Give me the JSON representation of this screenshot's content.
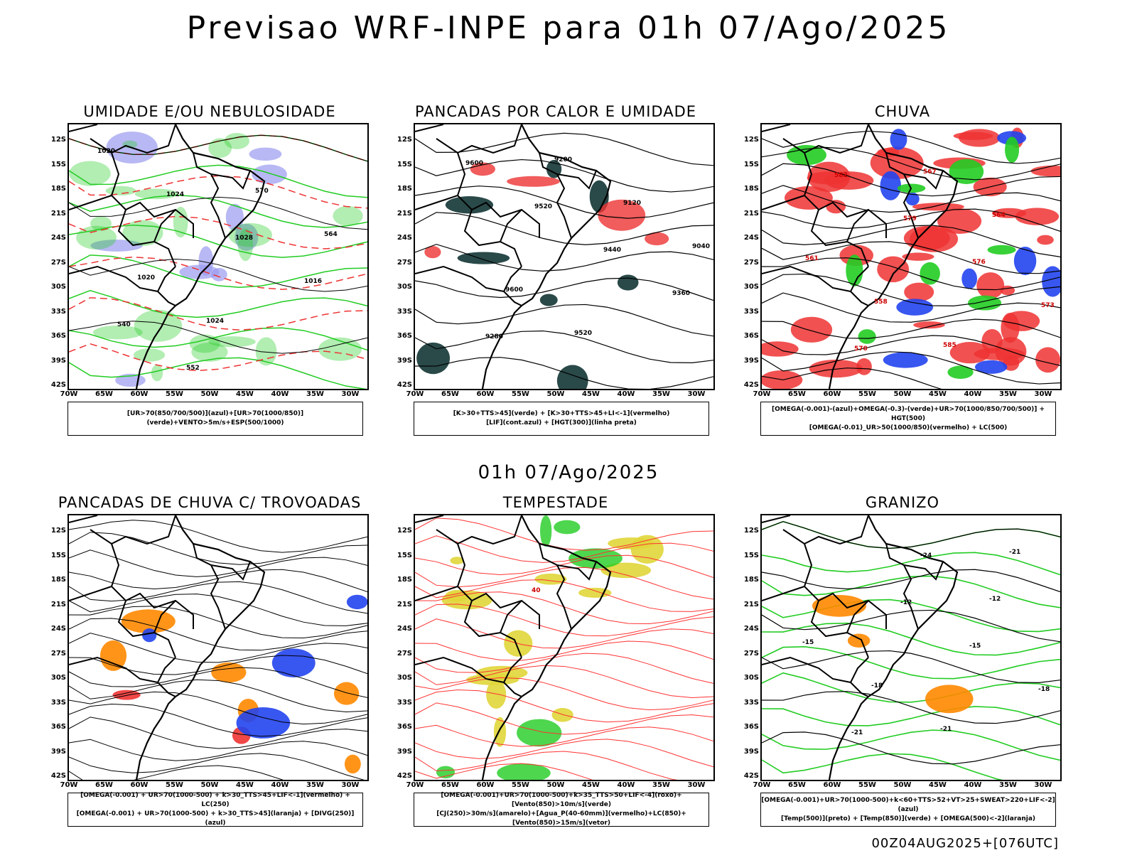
{
  "header": {
    "title": "Previsao WRF-INPE  para 01h 07/Ago/2025"
  },
  "subtitle": "01h 07/Ago/2025",
  "footer": "00Z04AUG2025+[076UTC]",
  "axes": {
    "lat": [
      "12S",
      "15S",
      "18S",
      "21S",
      "24S",
      "27S",
      "30S",
      "33S",
      "36S",
      "39S",
      "42S"
    ],
    "lon": [
      "70W",
      "65W",
      "60W",
      "55W",
      "50W",
      "45W",
      "40W",
      "35W",
      "30W"
    ]
  },
  "panels": [
    {
      "title": "UMIDADE E/OU NEBULOSIDADE",
      "legend": [
        "[UR>70(850/700/500)](azul)+[UR>70(1000/850)](verde)+VENTO>5m/s+ESP(500/1000)"
      ],
      "labels": [
        "1020",
        "1024",
        "1028",
        "1016",
        "540",
        "552",
        "570",
        "564",
        "1020",
        "1024"
      ]
    },
    {
      "title": "PANCADAS POR CALOR E UMIDADE",
      "legend": [
        "[K>30+TTS>45](verde) + [K>30+TTS>45+LI<-1](vermelho)",
        "[LIF](cont.azul) + [HGT(300)](linha preta)"
      ],
      "labels": [
        "9600",
        "9520",
        "9440",
        "9360",
        "9280",
        "9200",
        "9120",
        "9040",
        "9600",
        "9520"
      ]
    },
    {
      "title": "CHUVA",
      "legend": [
        "[OMEGA(-0.001)-(azul)+OMEGA(-0.3)-(verde)+UR>70(1000/850/700/500)] + HGT(500)",
        "[OMEGA(-0.01)_UR>50(1000/850)(vermelho) + LC(500)"
      ],
      "labels": [
        "582",
        "579",
        "576",
        "573",
        "570",
        "567",
        "564",
        "561",
        "558",
        "585"
      ]
    },
    {
      "title": "PANCADAS DE CHUVA C/ TROVOADAS",
      "legend": [
        "[OMEGA(-0.001) + UR>70(1000-500) + k>30_TTS>45+LIF<-1](vermelho) + LC(250)",
        "[OMEGA(-0.001) + UR>70(1000-500) + k>30_TTS>45](laranja) + [DIVG(250)](azul)"
      ],
      "labels": []
    },
    {
      "title": "TEMPESTADE",
      "legend": [
        "[OMEGA(-0.001)+UR>70(1000-500)+k>35_TTS>50+LIF<-4](roxo)+[Vento(850)>10m/s](verde)",
        "[CJ(250)>30m/s](amarelo)+[Agua_P(40-60mm)](vermelho)+LC(850)+[Vento(850)>15m/s](vetor)"
      ],
      "labels": [
        "40"
      ]
    },
    {
      "title": "GRANIZO",
      "legend": [
        "[OMEGA(-0.001)+UR>70(1000-500)+k<60+TTS>52+VT>25+SWEAT>220+LIF<-2](azul)",
        "[Temp(500)](preto) + [Temp(850)](verde) + [OMEGA(500)<-2](laranja)"
      ],
      "labels": [
        "-12",
        "-15",
        "-18",
        "-21",
        "-24",
        "-12",
        "-15",
        "-18",
        "-21",
        "-21"
      ]
    }
  ]
}
